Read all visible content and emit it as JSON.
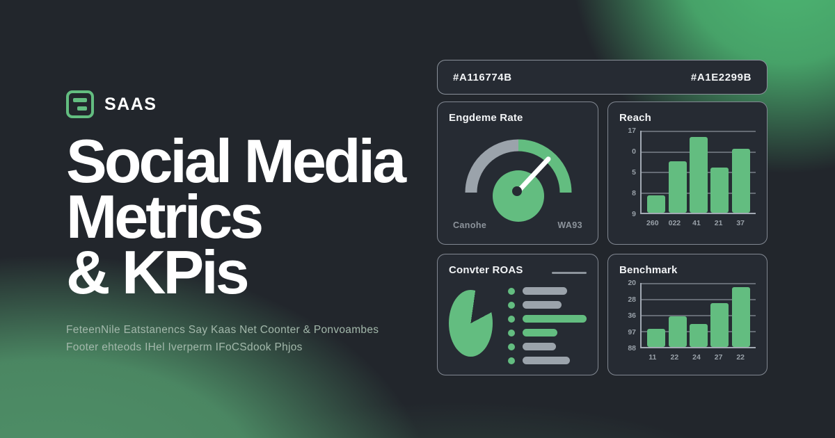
{
  "brand": {
    "name": "SAAS",
    "logo_icon": "list-icon",
    "logo_color": "#63bd80"
  },
  "title": {
    "line1": "Social Media",
    "line2": "Metrics",
    "line3": "& KPis"
  },
  "subtitle": {
    "line1": "FeteenNile Eatstanencs Say Kaas Net Coonter & Ponvoambes",
    "line2": "Footer ehteods IHel Iverperm IFoCSdook Phjos"
  },
  "colors": {
    "accent_green": "#63bd80",
    "corner_glow_green": "#4db873",
    "bottom_glow_green": "#4f9168",
    "neutral_gray": "#9ba3ab",
    "card_background": "#262b33",
    "page_background": "#22262c",
    "text_white": "#ffffff",
    "text_muted": "#99a1a9"
  },
  "dashboard": {
    "header": {
      "left_code": "#A116774B",
      "right_code": "#A1E2299B"
    }
  },
  "chart_data": [
    {
      "type": "gauge",
      "title": "Engdeme Rate",
      "left_label": "Canohe",
      "right_label": "WA93",
      "segments": [
        {
          "name": "low-half",
          "color": "#9ba3ab",
          "from_deg": 180,
          "to_deg": 270
        },
        {
          "name": "high-half",
          "color": "#63bd80",
          "from_deg": 270,
          "to_deg": 360
        }
      ],
      "needle_angle_deg_from_vertical": 43,
      "hub_color": "#63bd80"
    },
    {
      "type": "bar",
      "title": "Reach",
      "categories": [
        "260",
        "022",
        "41",
        "21",
        "37"
      ],
      "values": [
        21,
        63,
        92,
        55,
        78
      ],
      "y_ticks": [
        "17",
        "0",
        "5",
        "8",
        "9"
      ],
      "ylim": [
        0,
        100
      ],
      "grid": true,
      "legend_position": "none",
      "bar_color": "#63bd80"
    },
    {
      "type": "pie",
      "title": "Convter ROAS",
      "pie_color": "#63bd80",
      "slices": [
        {
          "name": "filled",
          "value": 85,
          "color": "#63bd80"
        },
        {
          "name": "notch",
          "value": 15,
          "color": "transparent"
        }
      ],
      "notch": {
        "from_deg": 8,
        "to_deg": 62
      },
      "legend": [
        {
          "bar_color": "#9ba3ab",
          "width": 64
        },
        {
          "bar_color": "#9ba3ab",
          "width": 56
        },
        {
          "bar_color": "#63bd80",
          "width": 92
        },
        {
          "bar_color": "#63bd80",
          "width": 50
        },
        {
          "bar_color": "#9ba3ab",
          "width": 48
        },
        {
          "bar_color": "#9ba3ab",
          "width": 68
        }
      ]
    },
    {
      "type": "bar",
      "title": "Benchmark",
      "categories": [
        "11",
        "22",
        "24",
        "27",
        "22"
      ],
      "values": [
        28,
        48,
        36,
        69,
        94
      ],
      "y_ticks": [
        "20",
        "28",
        "36",
        "97",
        "88"
      ],
      "ylim": [
        0,
        100
      ],
      "grid": true,
      "legend_position": "none",
      "bar_color": "#63bd80"
    }
  ]
}
